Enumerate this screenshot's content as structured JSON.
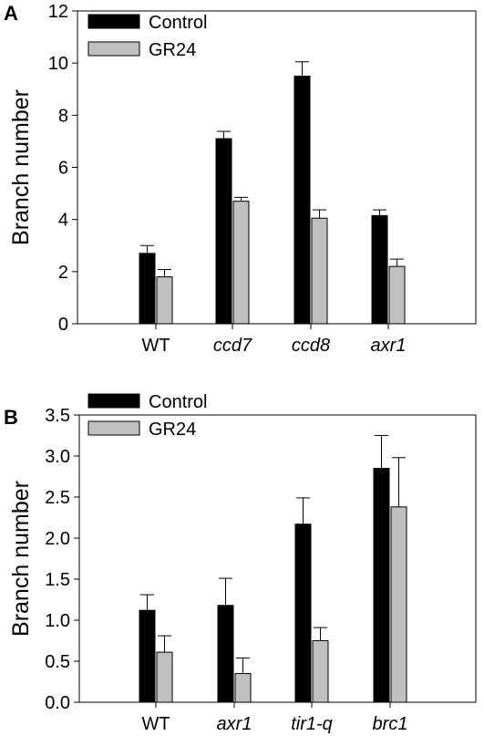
{
  "colors": {
    "control": "#000000",
    "gr24": "#c0c0c0",
    "axis": "#000000"
  },
  "chart_data": [
    {
      "panel": "A",
      "type": "bar",
      "ylabel": "Branch number",
      "ylim": [
        0,
        12
      ],
      "yticks": [
        0,
        2,
        4,
        6,
        8,
        10,
        12
      ],
      "ytick_labels": [
        "0",
        "2",
        "4",
        "6",
        "8",
        "10",
        "12"
      ],
      "categories": [
        "WT",
        "ccd7",
        "ccd8",
        "axr1"
      ],
      "italic_categories": [
        false,
        true,
        true,
        true
      ],
      "legend_position": "top-left",
      "series": [
        {
          "name": "Control",
          "color": "#000000",
          "values": [
            2.7,
            7.1,
            9.5,
            4.15
          ],
          "errors": [
            0.3,
            0.28,
            0.55,
            0.22
          ]
        },
        {
          "name": "GR24",
          "color": "#c0c0c0",
          "values": [
            1.8,
            4.7,
            4.05,
            2.2
          ],
          "errors": [
            0.28,
            0.15,
            0.32,
            0.28
          ]
        }
      ]
    },
    {
      "panel": "B",
      "type": "bar",
      "ylabel": "Branch number",
      "ylim": [
        0,
        3.5
      ],
      "yticks": [
        0,
        0.5,
        1,
        1.5,
        2,
        2.5,
        3,
        3.5
      ],
      "ytick_labels": [
        "0.0",
        "0.5",
        "1.0",
        "1.5",
        "2.0",
        "2.5",
        "3.0",
        "3.5"
      ],
      "categories": [
        "WT",
        "axr1",
        "tir1-q",
        "brc1"
      ],
      "italic_categories": [
        false,
        true,
        true,
        true
      ],
      "legend_position": "top-left",
      "series": [
        {
          "name": "Control",
          "color": "#000000",
          "values": [
            1.12,
            1.18,
            2.17,
            2.85
          ],
          "errors": [
            0.19,
            0.33,
            0.32,
            0.4
          ]
        },
        {
          "name": "GR24",
          "color": "#c0c0c0",
          "values": [
            0.61,
            0.35,
            0.75,
            2.38
          ],
          "errors": [
            0.2,
            0.19,
            0.16,
            0.6
          ]
        }
      ]
    }
  ]
}
